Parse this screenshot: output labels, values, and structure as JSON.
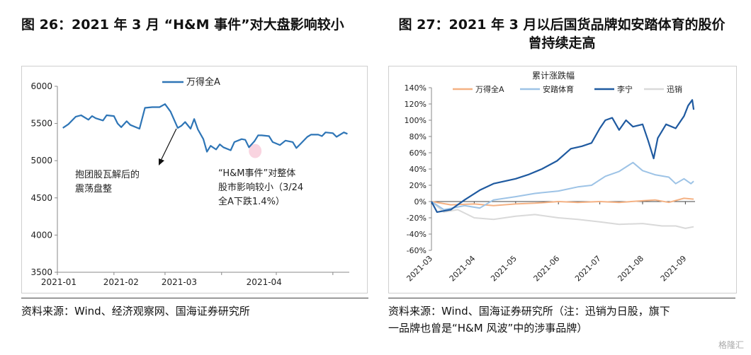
{
  "left": {
    "title": "图 26：2021 年 3 月 “H&M 事件”对大盘影响较小",
    "source": "资料来源：Wind、经济观察网、国海证券研究所",
    "annotation1": [
      "抱团股瓦解后的",
      "震荡盘整"
    ],
    "annotation2": [
      "“H&M事件”对整体",
      "股市影响较小（3/24",
      "全A下跌1.4%）"
    ]
  },
  "right": {
    "title_line1": "图 27：2021 年 3 月以后国货品牌如安踏体育的股价",
    "title_line2": "曾持续走高",
    "source_line1": "资料来源：Wind、国海证券研究所（注：迅销为日股，旗下",
    "source_line2": "一品牌也曾是“H&M 风波”中的涉事品牌）"
  },
  "watermark": "格隆汇",
  "colors": {
    "wande": "#2E75B6",
    "anta": "#9DC3E6",
    "lining": "#1F5AA0",
    "xunxiao": "#D9D9D9",
    "wande_right": "#F4B183",
    "highlight": "#F8C9D8"
  },
  "chart_data": [
    {
      "type": "line",
      "title": "",
      "xlabel": "",
      "ylabel": "",
      "legend_position": "top-center",
      "ylim": [
        3500,
        6000
      ],
      "yticks": [
        "3500",
        "4000",
        "4500",
        "5000",
        "5500",
        "6000"
      ],
      "xticks": [
        "2021-01",
        "2021-02",
        "2021-03",
        "2021-04"
      ],
      "series": [
        {
          "name": "万得全A",
          "points": [
            [
              "2021-01-04",
              5440
            ],
            [
              "2021-01-07",
              5490
            ],
            [
              "2021-01-11",
              5590
            ],
            [
              "2021-01-14",
              5610
            ],
            [
              "2021-01-18",
              5550
            ],
            [
              "2021-01-20",
              5600
            ],
            [
              "2021-01-22",
              5570
            ],
            [
              "2021-01-26",
              5540
            ],
            [
              "2021-01-28",
              5610
            ],
            [
              "2021-02-01",
              5600
            ],
            [
              "2021-02-03",
              5500
            ],
            [
              "2021-02-05",
              5450
            ],
            [
              "2021-02-08",
              5530
            ],
            [
              "2021-02-10",
              5480
            ],
            [
              "2021-02-15",
              5430
            ],
            [
              "2021-02-18",
              5710
            ],
            [
              "2021-02-22",
              5720
            ],
            [
              "2021-02-24",
              5720
            ],
            [
              "2021-02-26",
              5720
            ],
            [
              "2021-03-01",
              5760
            ],
            [
              "2021-03-04",
              5660
            ],
            [
              "2021-03-08",
              5440
            ],
            [
              "2021-03-10",
              5470
            ],
            [
              "2021-03-12",
              5520
            ],
            [
              "2021-03-15",
              5430
            ],
            [
              "2021-03-17",
              5560
            ],
            [
              "2021-03-19",
              5420
            ],
            [
              "2021-03-22",
              5290
            ],
            [
              "2021-03-24",
              5120
            ],
            [
              "2021-03-26",
              5200
            ],
            [
              "2021-03-29",
              5150
            ],
            [
              "2021-03-31",
              5220
            ],
            [
              "2021-04-02",
              5180
            ],
            [
              "2021-04-06",
              5140
            ],
            [
              "2021-04-08",
              5250
            ],
            [
              "2021-04-12",
              5290
            ],
            [
              "2021-04-14",
              5280
            ],
            [
              "2021-04-16",
              5180
            ],
            [
              "2021-04-19",
              5260
            ],
            [
              "2021-04-21",
              5340
            ],
            [
              "2021-04-23",
              5340
            ],
            [
              "2021-04-27",
              5330
            ],
            [
              "2021-04-29",
              5250
            ],
            [
              "2021-05-03",
              5210
            ],
            [
              "2021-05-06",
              5270
            ],
            [
              "2021-05-10",
              5250
            ],
            [
              "2021-05-12",
              5170
            ],
            [
              "2021-05-14",
              5220
            ],
            [
              "2021-05-18",
              5320
            ],
            [
              "2021-05-20",
              5350
            ],
            [
              "2021-05-24",
              5350
            ],
            [
              "2021-05-26",
              5330
            ],
            [
              "2021-05-28",
              5380
            ],
            [
              "2021-06-01",
              5370
            ],
            [
              "2021-06-03",
              5320
            ],
            [
              "2021-06-07",
              5380
            ],
            [
              "2021-06-09",
              5360
            ]
          ]
        }
      ]
    },
    {
      "type": "line",
      "title": "累计涨跌幅",
      "xlabel": "",
      "ylabel": "",
      "legend_position": "top",
      "ylim": [
        -60,
        140
      ],
      "yticks": [
        "-60%",
        "-40%",
        "-20%",
        "0%",
        "20%",
        "40%",
        "60%",
        "80%",
        "100%",
        "120%",
        "140%"
      ],
      "xticks": [
        "2021-03",
        "2021-04",
        "2021-05",
        "2021-06",
        "2021-07",
        "2021-08",
        "2021-09"
      ],
      "series": [
        {
          "name": "万得全A",
          "points": [
            [
              "2021-03-01",
              0
            ],
            [
              "2021-03-15",
              -4
            ],
            [
              "2021-04-01",
              -3
            ],
            [
              "2021-04-15",
              -5
            ],
            [
              "2021-05-01",
              -3
            ],
            [
              "2021-05-15",
              -2
            ],
            [
              "2021-06-01",
              0
            ],
            [
              "2021-06-15",
              -1
            ],
            [
              "2021-07-01",
              0
            ],
            [
              "2021-07-15",
              -1
            ],
            [
              "2021-08-01",
              1
            ],
            [
              "2021-08-10",
              2
            ],
            [
              "2021-08-20",
              -1
            ],
            [
              "2021-08-31",
              4
            ],
            [
              "2021-09-07",
              3
            ]
          ]
        },
        {
          "name": "安踏体育",
          "points": [
            [
              "2021-03-01",
              0
            ],
            [
              "2021-03-10",
              -10
            ],
            [
              "2021-03-25",
              -5
            ],
            [
              "2021-04-05",
              -8
            ],
            [
              "2021-04-15",
              2
            ],
            [
              "2021-05-01",
              6
            ],
            [
              "2021-05-15",
              10
            ],
            [
              "2021-06-01",
              13
            ],
            [
              "2021-06-15",
              18
            ],
            [
              "2021-06-25",
              20
            ],
            [
              "2021-07-05",
              31
            ],
            [
              "2021-07-15",
              37
            ],
            [
              "2021-07-25",
              48
            ],
            [
              "2021-08-01",
              38
            ],
            [
              "2021-08-10",
              33
            ],
            [
              "2021-08-20",
              30
            ],
            [
              "2021-08-25",
              22
            ],
            [
              "2021-08-31",
              28
            ],
            [
              "2021-09-05",
              22
            ],
            [
              "2021-09-07",
              25
            ]
          ]
        },
        {
          "name": "李宁",
          "points": [
            [
              "2021-03-01",
              0
            ],
            [
              "2021-03-05",
              -13
            ],
            [
              "2021-03-15",
              -10
            ],
            [
              "2021-03-25",
              2
            ],
            [
              "2021-04-05",
              14
            ],
            [
              "2021-04-15",
              22
            ],
            [
              "2021-05-01",
              28
            ],
            [
              "2021-05-10",
              33
            ],
            [
              "2021-05-20",
              40
            ],
            [
              "2021-05-31",
              50
            ],
            [
              "2021-06-10",
              65
            ],
            [
              "2021-06-18",
              68
            ],
            [
              "2021-06-25",
              72
            ],
            [
              "2021-07-01",
              90
            ],
            [
              "2021-07-05",
              100
            ],
            [
              "2021-07-10",
              103
            ],
            [
              "2021-07-15",
              88
            ],
            [
              "2021-07-20",
              100
            ],
            [
              "2021-07-25",
              92
            ],
            [
              "2021-08-01",
              95
            ],
            [
              "2021-08-05",
              75
            ],
            [
              "2021-08-09",
              53
            ],
            [
              "2021-08-12",
              78
            ],
            [
              "2021-08-18",
              95
            ],
            [
              "2021-08-25",
              90
            ],
            [
              "2021-08-31",
              105
            ],
            [
              "2021-09-03",
              118
            ],
            [
              "2021-09-06",
              125
            ],
            [
              "2021-09-07",
              113
            ]
          ]
        },
        {
          "name": "迅销",
          "points": [
            [
              "2021-03-01",
              0
            ],
            [
              "2021-03-10",
              -13
            ],
            [
              "2021-03-20",
              -10
            ],
            [
              "2021-04-01",
              -20
            ],
            [
              "2021-04-15",
              -22
            ],
            [
              "2021-05-01",
              -18
            ],
            [
              "2021-05-15",
              -16
            ],
            [
              "2021-06-01",
              -20
            ],
            [
              "2021-06-15",
              -22
            ],
            [
              "2021-07-01",
              -25
            ],
            [
              "2021-07-15",
              -28
            ],
            [
              "2021-08-01",
              -27
            ],
            [
              "2021-08-15",
              -30
            ],
            [
              "2021-08-25",
              -30
            ],
            [
              "2021-09-01",
              -33
            ],
            [
              "2021-09-07",
              -31
            ]
          ]
        }
      ]
    }
  ]
}
